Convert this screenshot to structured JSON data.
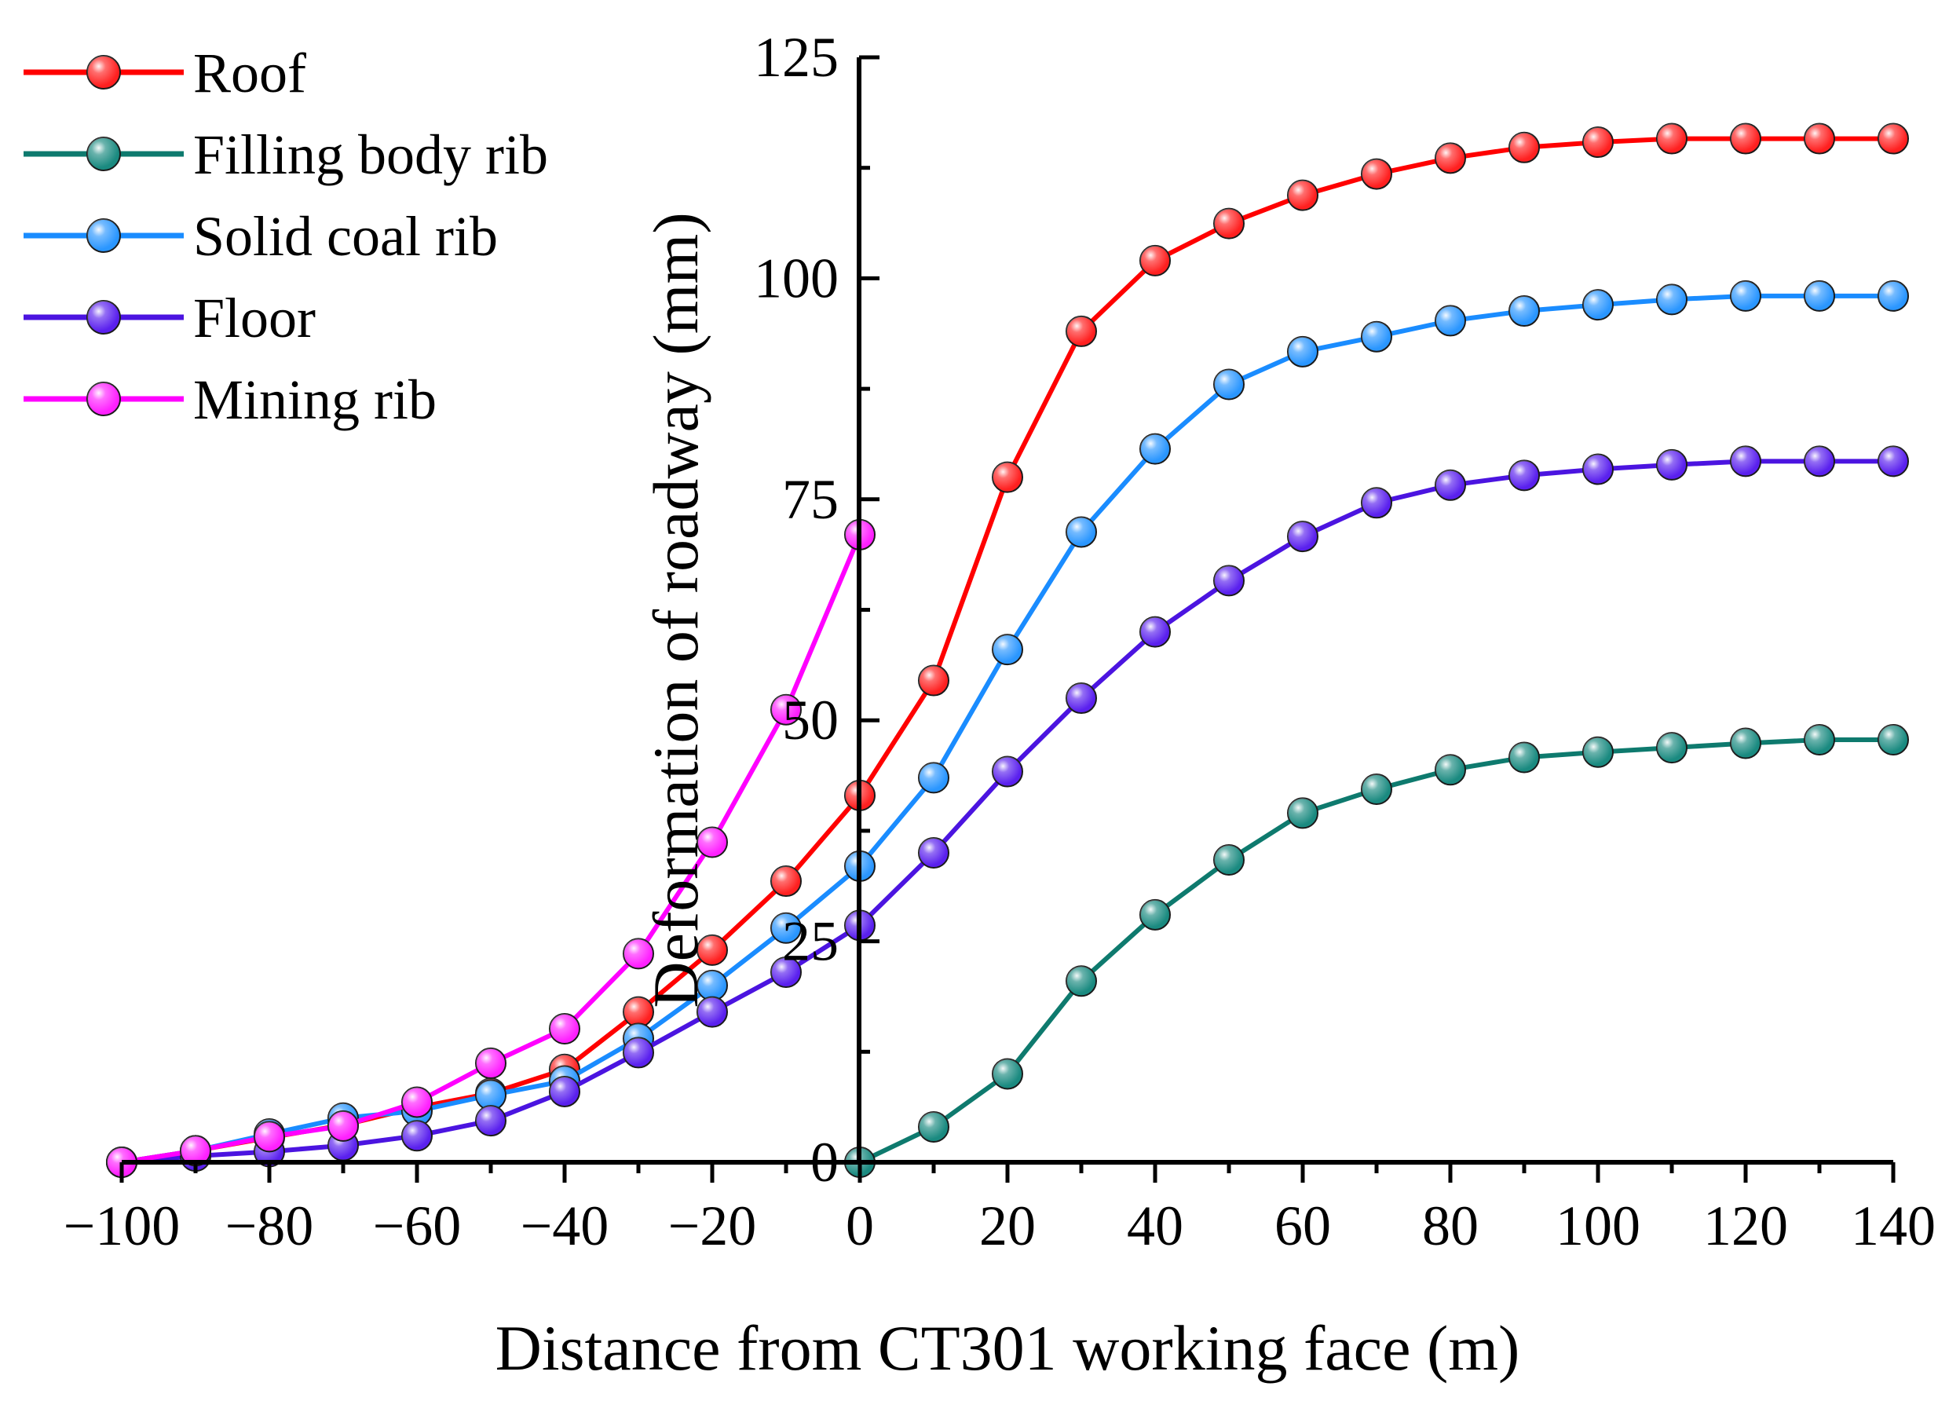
{
  "chart_data": {
    "type": "line",
    "title": "",
    "xlabel": "Distance from CT301 working face (m)",
    "ylabel": "Deformation of roadway (mm)",
    "xlim": [
      -100,
      140
    ],
    "ylim": [
      0,
      125
    ],
    "x_ticks": [
      "−100",
      "−80",
      "−60",
      "−40",
      "−20",
      "0",
      "20",
      "40",
      "60",
      "80",
      "100",
      "120",
      "140"
    ],
    "x_tick_values": [
      -100,
      -80,
      -60,
      -40,
      -20,
      0,
      20,
      40,
      60,
      80,
      100,
      120,
      140
    ],
    "y_ticks": [
      "0",
      "25",
      "50",
      "75",
      "100",
      "125"
    ],
    "y_tick_values": [
      0,
      25,
      50,
      75,
      100,
      125
    ],
    "legend_position": "top-left",
    "series": [
      {
        "name": "Roof",
        "color": "#ff0000",
        "marker_color": "#ff2020",
        "x": [
          -100,
          -90,
          -80,
          -70,
          -60,
          -50,
          -40,
          -30,
          -20,
          -10,
          0,
          10,
          20,
          30,
          40,
          50,
          60,
          70,
          80,
          90,
          100,
          110,
          120,
          130,
          140
        ],
        "values": [
          0,
          1.3,
          2.8,
          4.2,
          6.2,
          7.8,
          10.5,
          17,
          24,
          31.8,
          41.5,
          54.5,
          77.5,
          94,
          102,
          106.2,
          109.4,
          111.8,
          113.6,
          114.8,
          115.4,
          115.8,
          115.8,
          115.8,
          115.8
        ]
      },
      {
        "name": "Filling body rib",
        "color": "#0e7a6e",
        "marker_color": "#1a8a80",
        "x": [
          0,
          10,
          20,
          30,
          40,
          50,
          60,
          70,
          80,
          90,
          100,
          110,
          120,
          130,
          140
        ],
        "values": [
          0,
          4,
          10,
          20.5,
          28,
          34.2,
          39.5,
          42.2,
          44.4,
          45.8,
          46.4,
          46.9,
          47.4,
          47.8,
          47.8
        ]
      },
      {
        "name": "Solid coal rib",
        "color": "#1a8cff",
        "marker_color": "#2a96ff",
        "x": [
          -100,
          -90,
          -80,
          -70,
          -60,
          -50,
          -40,
          -30,
          -20,
          -10,
          0,
          10,
          20,
          30,
          40,
          50,
          60,
          70,
          80,
          90,
          100,
          110,
          120,
          130,
          140
        ],
        "values": [
          0,
          1.3,
          3.2,
          5,
          5.8,
          7.6,
          9.2,
          14,
          20,
          26.5,
          33.5,
          43.5,
          58,
          71.3,
          80.7,
          88,
          91.7,
          93.4,
          95.2,
          96.3,
          97,
          97.6,
          98,
          98,
          98
        ]
      },
      {
        "name": "Floor",
        "color": "#4b14e0",
        "marker_color": "#5a20ee",
        "x": [
          -100,
          -90,
          -80,
          -70,
          -60,
          -50,
          -40,
          -30,
          -20,
          -10,
          0,
          10,
          20,
          30,
          40,
          50,
          60,
          70,
          80,
          90,
          100,
          110,
          120,
          130,
          140
        ],
        "values": [
          0,
          0.7,
          1.2,
          1.9,
          3,
          4.7,
          8,
          12.4,
          17,
          21.5,
          26.8,
          35,
          44.2,
          52.5,
          60,
          65.8,
          70.8,
          74.6,
          76.6,
          77.7,
          78.4,
          78.9,
          79.3,
          79.3,
          79.3
        ]
      },
      {
        "name": "Mining rib",
        "color": "#ff00ff",
        "marker_color": "#ff20ff",
        "x": [
          -100,
          -90,
          -80,
          -70,
          -60,
          -50,
          -40,
          -30,
          -20,
          -10,
          0
        ],
        "values": [
          0,
          1.3,
          2.9,
          4.1,
          6.8,
          11.2,
          15.1,
          23.6,
          36.2,
          51.2,
          71
        ]
      }
    ]
  }
}
